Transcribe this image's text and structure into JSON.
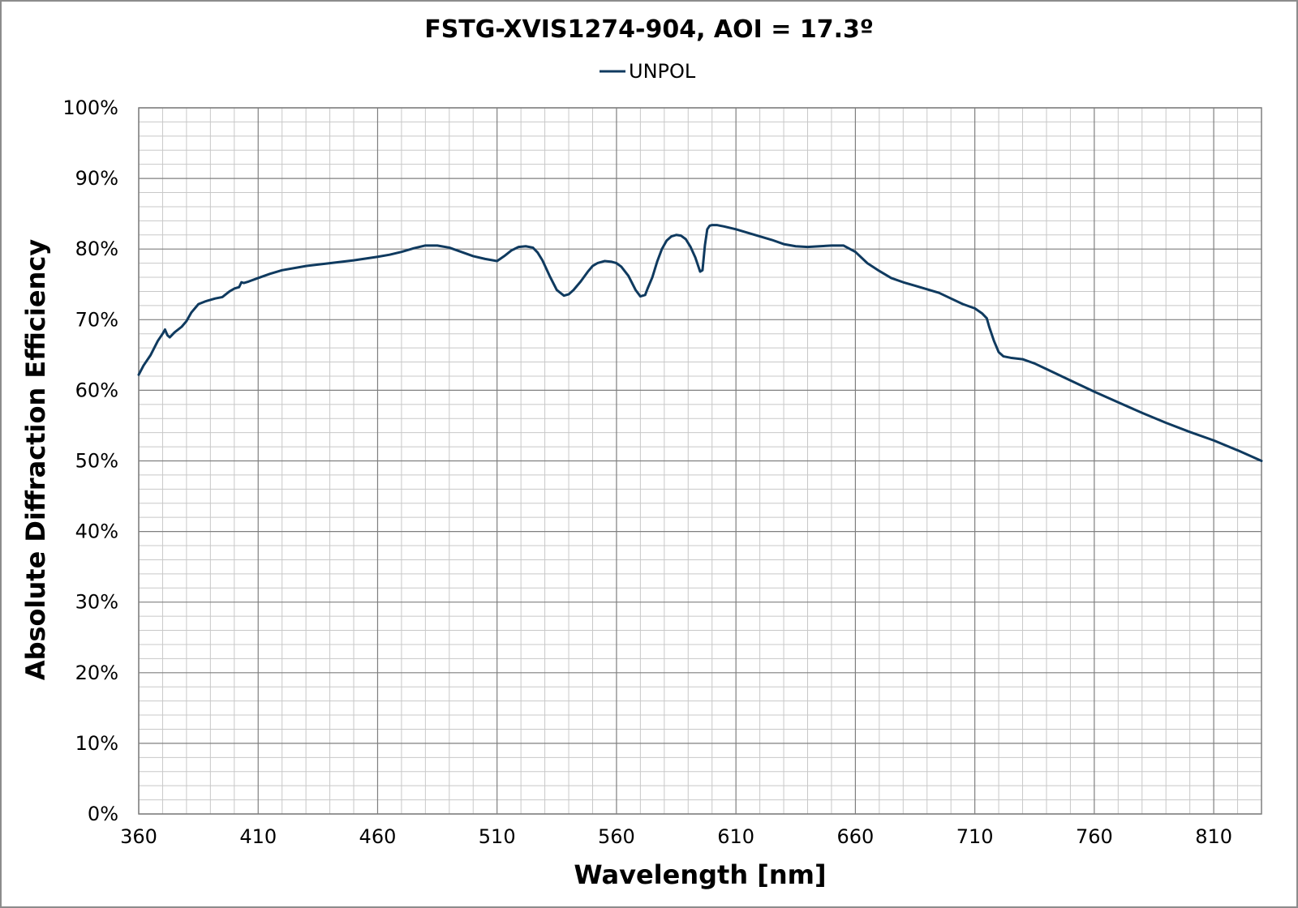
{
  "chart_data": {
    "type": "line",
    "title": "FSTG-XVIS1274-904, AOI = 17.3º",
    "xlabel": "Wavelength [nm]",
    "ylabel": "Absolute Diffraction Efficiency",
    "xlim": [
      360,
      830
    ],
    "ylim": [
      0,
      100
    ],
    "x_ticks": [
      360,
      410,
      460,
      510,
      560,
      610,
      660,
      710,
      760,
      810
    ],
    "x_tick_labels": [
      "360",
      "410",
      "460",
      "510",
      "560",
      "610",
      "660",
      "710",
      "760",
      "810"
    ],
    "y_ticks": [
      0,
      10,
      20,
      30,
      40,
      50,
      60,
      70,
      80,
      90,
      100
    ],
    "y_tick_labels": [
      "0%",
      "10%",
      "20%",
      "30%",
      "40%",
      "50%",
      "60%",
      "70%",
      "80%",
      "90%",
      "100%"
    ],
    "x_minor_step": 10,
    "y_minor_step": 2,
    "grid": true,
    "legend": "top-center",
    "colors": {
      "series": "#0f3a5f",
      "grid_major": "#7f7f7f",
      "grid_minor": "#c8c8c8",
      "frame": "#7f7f7f"
    },
    "series": [
      {
        "name": "UNPOL",
        "x": [
          360,
          362,
          365,
          368,
          370,
          371,
          372,
          373,
          375,
          378,
          380,
          382,
          385,
          388,
          392,
          395,
          398,
          400,
          402,
          403,
          404,
          406,
          410,
          415,
          420,
          430,
          440,
          450,
          460,
          465,
          470,
          475,
          480,
          485,
          490,
          495,
          500,
          505,
          510,
          513,
          516,
          519,
          522,
          525,
          527,
          529,
          532,
          535,
          538,
          540,
          542,
          545,
          548,
          550,
          552,
          555,
          558,
          560,
          562,
          565,
          568,
          570,
          572,
          573,
          575,
          577,
          579,
          581,
          583,
          585,
          587,
          589,
          591,
          593,
          595,
          596,
          597,
          598,
          599,
          600,
          602,
          605,
          610,
          615,
          620,
          625,
          630,
          635,
          640,
          645,
          650,
          655,
          660,
          665,
          670,
          675,
          680,
          685,
          690,
          695,
          700,
          705,
          710,
          713,
          715,
          716,
          718,
          720,
          722,
          725,
          730,
          735,
          740,
          750,
          760,
          770,
          780,
          790,
          800,
          810,
          820,
          830
        ],
        "y": [
          62.2,
          63.5,
          65.0,
          67.0,
          68.0,
          68.6,
          67.8,
          67.5,
          68.2,
          69.0,
          69.8,
          71.0,
          72.2,
          72.6,
          73.0,
          73.2,
          74.0,
          74.4,
          74.6,
          75.3,
          75.2,
          75.4,
          75.9,
          76.5,
          77.0,
          77.6,
          78.0,
          78.4,
          78.9,
          79.2,
          79.6,
          80.1,
          80.5,
          80.5,
          80.2,
          79.6,
          79.0,
          78.6,
          78.3,
          79.0,
          79.8,
          80.3,
          80.4,
          80.2,
          79.5,
          78.4,
          76.2,
          74.2,
          73.4,
          73.6,
          74.2,
          75.4,
          76.8,
          77.6,
          78.0,
          78.3,
          78.2,
          78.0,
          77.5,
          76.2,
          74.2,
          73.3,
          73.5,
          74.4,
          76.0,
          78.2,
          80.0,
          81.2,
          81.8,
          82.0,
          81.9,
          81.4,
          80.3,
          78.8,
          76.8,
          77.0,
          80.5,
          82.8,
          83.3,
          83.4,
          83.4,
          83.2,
          82.8,
          82.3,
          81.8,
          81.3,
          80.7,
          80.4,
          80.3,
          80.4,
          80.5,
          80.5,
          79.6,
          78.0,
          76.9,
          75.9,
          75.3,
          74.8,
          74.3,
          73.8,
          73.0,
          72.2,
          71.6,
          70.9,
          70.2,
          69.0,
          67.0,
          65.4,
          64.8,
          64.6,
          64.4,
          63.8,
          63.0,
          61.4,
          59.8,
          58.3,
          56.8,
          55.4,
          54.1,
          52.9,
          51.5,
          50.0
        ]
      }
    ]
  }
}
